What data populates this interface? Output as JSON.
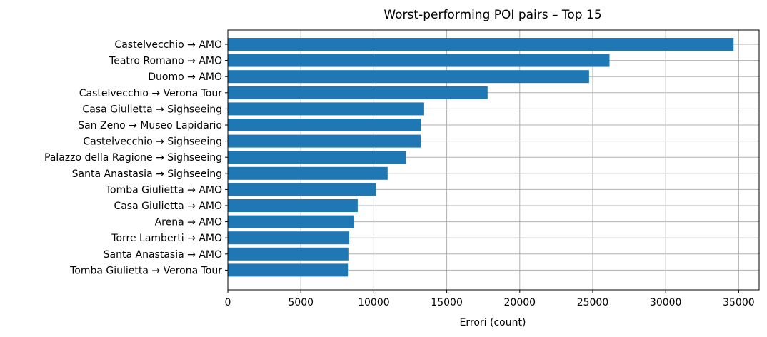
{
  "chart_data": {
    "type": "bar",
    "orientation": "horizontal",
    "title": "Worst-performing POI pairs – Top 15",
    "xlabel": "Errori (count)",
    "ylabel": "",
    "categories": [
      "Castelvecchio → AMO",
      "Teatro Romano → AMO",
      "Duomo → AMO",
      "Castelvecchio → Verona Tour",
      "Casa Giulietta → Sighseeing",
      "San Zeno → Museo Lapidario",
      "Castelvecchio → Sighseeing",
      "Palazzo della Ragione → Sighseeing",
      "Santa Anastasia → Sighseeing",
      "Tomba Giulietta → AMO",
      "Casa Giulietta → AMO",
      "Arena → AMO",
      "Torre Lamberti → AMO",
      "Santa Anastasia → AMO",
      "Tomba Giulietta → Verona Tour"
    ],
    "values": [
      34650,
      26150,
      24750,
      17800,
      13450,
      13220,
      13220,
      12200,
      10950,
      10150,
      8900,
      8650,
      8320,
      8260,
      8230
    ],
    "xlim": [
      0,
      36400
    ],
    "xticks": [
      0,
      5000,
      10000,
      15000,
      20000,
      25000,
      30000,
      35000
    ],
    "grid": true,
    "bar_color": "#1f77b4",
    "grid_color": "#b0b0b0"
  }
}
